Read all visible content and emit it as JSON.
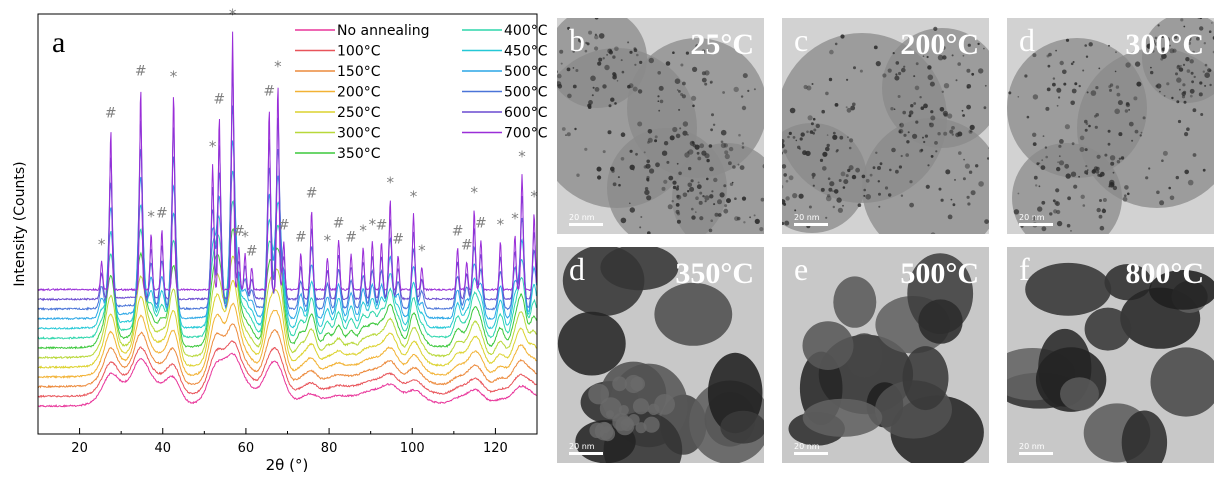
{
  "figure": {
    "panel_a": {
      "letter": "a",
      "chart_data": {
        "type": "line",
        "xlabel": "2θ (°)",
        "ylabel": "Intensity (Counts)",
        "xlim": [
          10,
          130
        ],
        "xticks": [
          20,
          40,
          60,
          80,
          100,
          120
        ],
        "legend_position": "top-right",
        "series": [
          {
            "name": "No annealing",
            "color": "#e8359a"
          },
          {
            "name": "100°C",
            "color": "#e8545a"
          },
          {
            "name": "150°C",
            "color": "#ec8a3c"
          },
          {
            "name": "200°C",
            "color": "#f2b234"
          },
          {
            "name": "250°C",
            "color": "#dcd22e"
          },
          {
            "name": "300°C",
            "color": "#b8d83a"
          },
          {
            "name": "350°C",
            "color": "#3cc83c"
          },
          {
            "name": "400°C",
            "color": "#2ed6ac"
          },
          {
            "name": "450°C",
            "color": "#24c8d6"
          },
          {
            "name": "500°C",
            "color": "#2aa6e6"
          },
          {
            "name": "500°C",
            "color": "#4a74d8"
          },
          {
            "name": "600°C",
            "color": "#6a4ad0"
          },
          {
            "name": "700°C",
            "color": "#9a2ed8"
          }
        ],
        "peak_markers": [
          {
            "x": 25.3,
            "h": 36,
            "label": "*"
          },
          {
            "x": 27.5,
            "h": 168,
            "label": "#"
          },
          {
            "x": 34.7,
            "h": 210,
            "label": "#"
          },
          {
            "x": 37.2,
            "h": 64,
            "label": "*"
          },
          {
            "x": 39.8,
            "h": 68,
            "label": "#"
          },
          {
            "x": 42.6,
            "h": 204,
            "label": "*"
          },
          {
            "x": 52.0,
            "h": 134,
            "label": "*"
          },
          {
            "x": 53.6,
            "h": 182,
            "label": "#"
          },
          {
            "x": 56.8,
            "h": 266,
            "label": "*"
          },
          {
            "x": 58.3,
            "h": 50,
            "label": "#"
          },
          {
            "x": 59.8,
            "h": 44,
            "label": "*"
          },
          {
            "x": 61.4,
            "h": 30,
            "label": "#"
          },
          {
            "x": 65.6,
            "h": 190,
            "label": "#"
          },
          {
            "x": 67.7,
            "h": 214,
            "label": "*"
          },
          {
            "x": 69.1,
            "h": 56,
            "label": "#"
          },
          {
            "x": 73.2,
            "h": 44,
            "label": "#"
          },
          {
            "x": 75.8,
            "h": 88,
            "label": "#"
          },
          {
            "x": 79.6,
            "h": 40,
            "label": "*"
          },
          {
            "x": 82.3,
            "h": 58,
            "label": "#"
          },
          {
            "x": 85.3,
            "h": 44,
            "label": "#"
          },
          {
            "x": 88.2,
            "h": 50,
            "label": "*"
          },
          {
            "x": 90.4,
            "h": 56,
            "label": "*"
          },
          {
            "x": 92.6,
            "h": 56,
            "label": "#"
          },
          {
            "x": 94.7,
            "h": 98,
            "label": "*"
          },
          {
            "x": 96.6,
            "h": 42,
            "label": "#"
          },
          {
            "x": 100.3,
            "h": 84,
            "label": "*"
          },
          {
            "x": 102.3,
            "h": 30,
            "label": "*"
          },
          {
            "x": 110.9,
            "h": 50,
            "label": "#"
          },
          {
            "x": 113.1,
            "h": 36,
            "label": "#"
          },
          {
            "x": 114.9,
            "h": 88,
            "label": "*"
          },
          {
            "x": 116.5,
            "h": 58,
            "label": "#"
          },
          {
            "x": 121.2,
            "h": 56,
            "label": "*"
          },
          {
            "x": 124.7,
            "h": 62,
            "label": "*"
          },
          {
            "x": 126.4,
            "h": 124,
            "label": "*"
          },
          {
            "x": 129.3,
            "h": 84,
            "label": "*"
          }
        ]
      }
    },
    "tem_panels": [
      {
        "letter": "b",
        "temperature": "25°C",
        "scale": "20 nm",
        "style": "light"
      },
      {
        "letter": "c",
        "temperature": "200°C",
        "scale": "20 nm",
        "style": "light"
      },
      {
        "letter": "d",
        "temperature": "300°C",
        "scale": "20 nm",
        "style": "light"
      },
      {
        "letter": "d",
        "temperature": "350°C",
        "scale": "20 nm",
        "style": "dark"
      },
      {
        "letter": "e",
        "temperature": "500°C",
        "scale": "20 nm",
        "style": "dark"
      },
      {
        "letter": "f",
        "temperature": "800°C",
        "scale": "20 nm",
        "style": "dark"
      }
    ]
  }
}
